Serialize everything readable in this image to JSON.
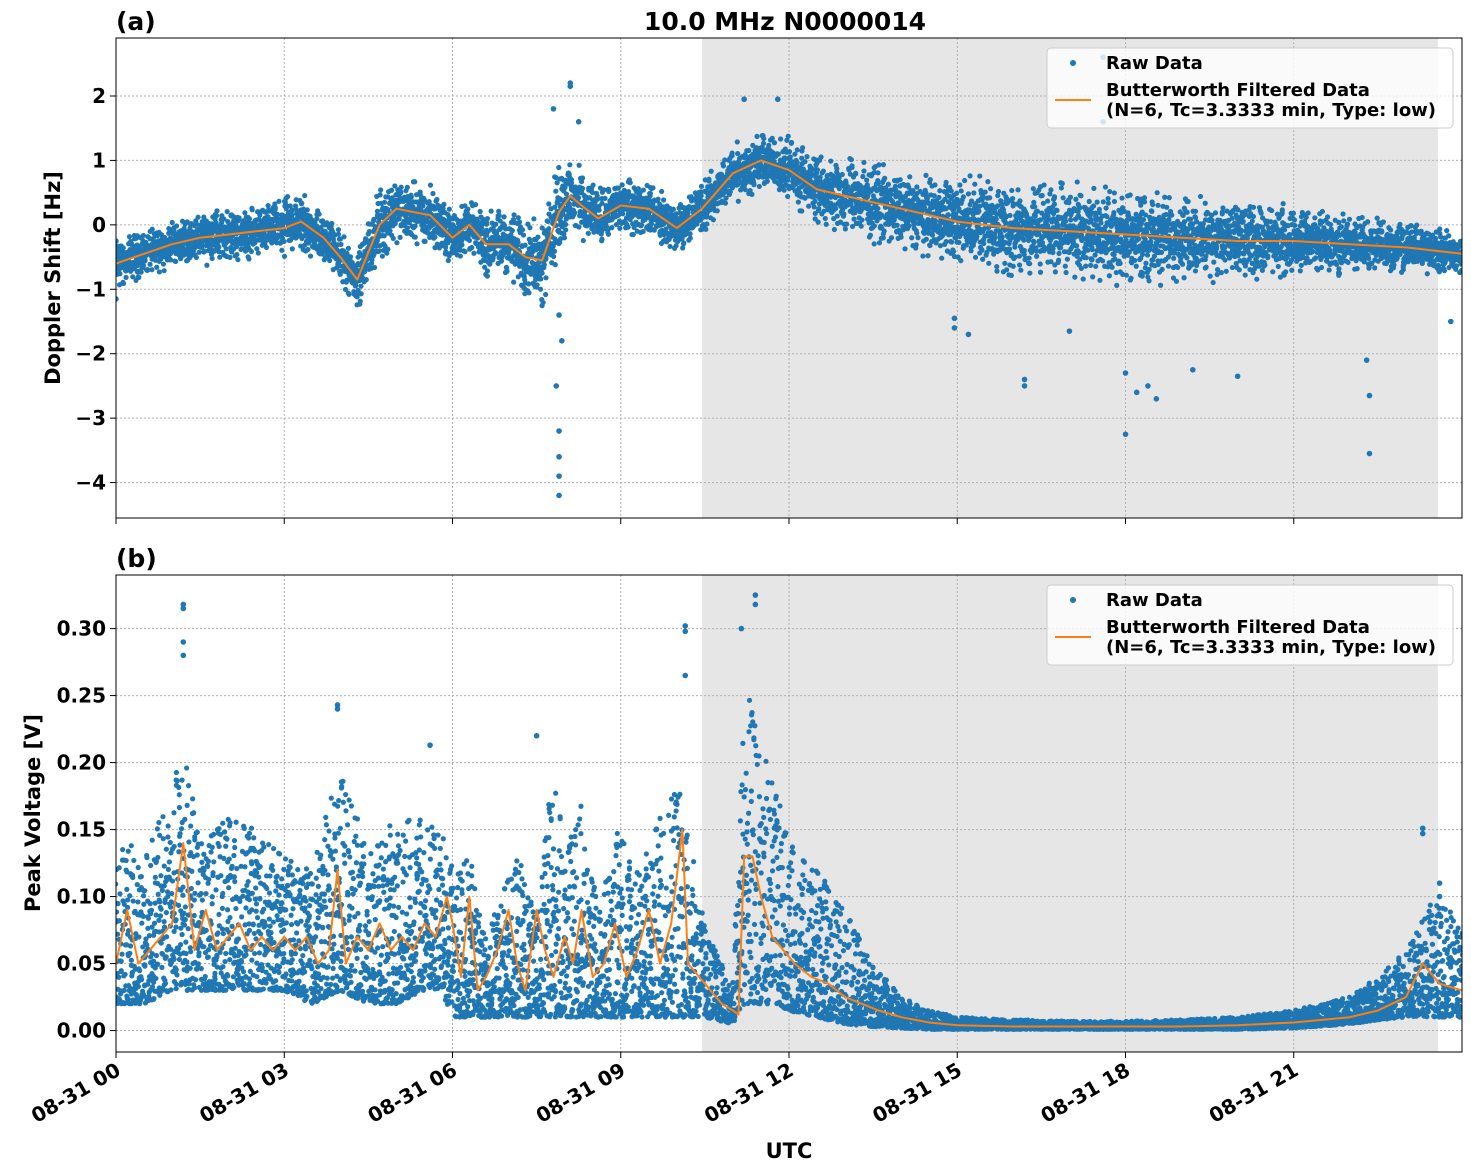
{
  "title": "10.0 MHz N0000014",
  "colors": {
    "raw": "#1f77b4",
    "filtered": "#ff7f0e",
    "night_shade": "#e6e6e6",
    "grid": "#b0b0b0"
  },
  "x_axis": {
    "label": "UTC",
    "range_hours": [
      0,
      24
    ],
    "ticks": [
      {
        "hour": 0,
        "label": "08-31 00"
      },
      {
        "hour": 3,
        "label": "08-31 03"
      },
      {
        "hour": 6,
        "label": "08-31 06"
      },
      {
        "hour": 9,
        "label": "08-31 09"
      },
      {
        "hour": 12,
        "label": "08-31 12"
      },
      {
        "hour": 15,
        "label": "08-31 15"
      },
      {
        "hour": 18,
        "label": "08-31 18"
      },
      {
        "hour": 21,
        "label": "08-31 21"
      }
    ]
  },
  "legend": {
    "raw_label": "Raw Data",
    "filtered_label_line1": "Butterworth Filtered Data",
    "filtered_label_line2": "(N=6, Tc=3.3333 min, Type: low)",
    "placement": "top-right"
  },
  "chart_data": [
    {
      "panel": "(a)",
      "type": "scatter",
      "ylabel": "Doppler Shift [Hz]",
      "ylim": [
        -4.55,
        2.9
      ],
      "yticks": [
        {
          "value": 2,
          "label": "2"
        },
        {
          "value": 1,
          "label": "1"
        },
        {
          "value": 0,
          "label": "0"
        },
        {
          "value": -1,
          "label": "−1"
        },
        {
          "value": -2,
          "label": "−2"
        },
        {
          "value": -3,
          "label": "−3"
        },
        {
          "value": -4,
          "label": "−4"
        }
      ],
      "grid": true,
      "shaded_interval_hours": [
        10.45,
        23.57
      ],
      "series": [
        {
          "name": "Raw Data",
          "x_hours": [
            0,
            0.5,
            1,
            1.5,
            2,
            2.5,
            3,
            3.3,
            3.7,
            4,
            4.3,
            4.7,
            5,
            5.3,
            5.6,
            6,
            6.3,
            6.6,
            7,
            7.3,
            7.6,
            7.9,
            8.1,
            8.3,
            8.6,
            9,
            9.5,
            10,
            10.45,
            11,
            11.5,
            12,
            12.5,
            13,
            13.5,
            14,
            15,
            16,
            17,
            18,
            19,
            20,
            21,
            22,
            23,
            24
          ],
          "band_half_width": [
            0.3,
            0.25,
            0.25,
            0.3,
            0.3,
            0.3,
            0.35,
            0.4,
            0.3,
            0.3,
            0.35,
            0.4,
            0.4,
            0.35,
            0.35,
            0.3,
            0.35,
            0.4,
            0.45,
            0.45,
            0.5,
            0.55,
            0.55,
            0.4,
            0.35,
            0.3,
            0.3,
            0.3,
            0.3,
            0.35,
            0.35,
            0.35,
            0.4,
            0.45,
            0.45,
            0.45,
            0.5,
            0.55,
            0.55,
            0.55,
            0.5,
            0.45,
            0.4,
            0.35,
            0.3,
            0.25
          ],
          "center": [
            -0.6,
            -0.45,
            -0.3,
            -0.2,
            -0.15,
            -0.1,
            -0.05,
            0.05,
            -0.2,
            -0.5,
            -0.85,
            0.0,
            0.25,
            0.2,
            0.15,
            -0.2,
            0.0,
            -0.3,
            -0.3,
            -0.5,
            -0.55,
            0.2,
            0.45,
            0.3,
            0.1,
            0.3,
            0.25,
            -0.05,
            0.25,
            0.8,
            1.0,
            0.85,
            0.55,
            0.45,
            0.35,
            0.25,
            0.05,
            -0.05,
            -0.1,
            -0.15,
            -0.2,
            -0.25,
            -0.25,
            -0.3,
            -0.35,
            -0.45
          ],
          "outliers": [
            {
              "x": 7.9,
              "y": -4.2
            },
            {
              "x": 7.9,
              "y": -3.9
            },
            {
              "x": 7.9,
              "y": -3.6
            },
            {
              "x": 7.9,
              "y": -3.2
            },
            {
              "x": 7.85,
              "y": -2.5
            },
            {
              "x": 7.95,
              "y": -1.8
            },
            {
              "x": 7.9,
              "y": -1.4
            },
            {
              "x": 8.1,
              "y": 2.2
            },
            {
              "x": 8.1,
              "y": 2.15
            },
            {
              "x": 7.8,
              "y": 1.8
            },
            {
              "x": 8.25,
              "y": 1.6
            },
            {
              "x": 11.2,
              "y": 1.95
            },
            {
              "x": 11.8,
              "y": 1.95
            },
            {
              "x": 17.6,
              "y": 2.6
            },
            {
              "x": 17.6,
              "y": 1.6
            },
            {
              "x": 14.95,
              "y": -1.45
            },
            {
              "x": 14.95,
              "y": -1.6
            },
            {
              "x": 15.2,
              "y": -1.7
            },
            {
              "x": 16.2,
              "y": -2.4
            },
            {
              "x": 16.2,
              "y": -2.5
            },
            {
              "x": 17.0,
              "y": -1.65
            },
            {
              "x": 18.0,
              "y": -2.3
            },
            {
              "x": 18.2,
              "y": -2.6
            },
            {
              "x": 18.4,
              "y": -2.5
            },
            {
              "x": 18.55,
              "y": -2.7
            },
            {
              "x": 18.0,
              "y": -3.25
            },
            {
              "x": 19.2,
              "y": -2.25
            },
            {
              "x": 20.0,
              "y": -2.35
            },
            {
              "x": 22.35,
              "y": -2.65
            },
            {
              "x": 22.35,
              "y": -3.55
            },
            {
              "x": 22.3,
              "y": -2.1
            },
            {
              "x": 23.8,
              "y": -1.5
            },
            {
              "x": 0.0,
              "y": -1.15
            }
          ]
        },
        {
          "name": "Butterworth Filtered Data",
          "x_hours": [
            0,
            0.5,
            1,
            1.5,
            2,
            2.5,
            3,
            3.3,
            3.7,
            4,
            4.3,
            4.7,
            5,
            5.3,
            5.6,
            6,
            6.3,
            6.6,
            7,
            7.3,
            7.6,
            7.9,
            8.1,
            8.3,
            8.6,
            9,
            9.5,
            10,
            10.45,
            11,
            11.5,
            12,
            12.5,
            13,
            13.5,
            14,
            15,
            16,
            17,
            18,
            19,
            20,
            21,
            22,
            23,
            24
          ],
          "y": [
            -0.6,
            -0.45,
            -0.3,
            -0.2,
            -0.15,
            -0.1,
            -0.05,
            0.05,
            -0.2,
            -0.5,
            -0.85,
            0.0,
            0.25,
            0.2,
            0.15,
            -0.2,
            0.0,
            -0.3,
            -0.3,
            -0.5,
            -0.55,
            0.2,
            0.45,
            0.3,
            0.1,
            0.3,
            0.25,
            -0.05,
            0.25,
            0.8,
            1.0,
            0.85,
            0.55,
            0.45,
            0.35,
            0.25,
            0.05,
            -0.05,
            -0.1,
            -0.15,
            -0.2,
            -0.25,
            -0.25,
            -0.3,
            -0.35,
            -0.45
          ]
        }
      ]
    },
    {
      "panel": "(b)",
      "type": "scatter",
      "ylabel": "Peak Voltage [V]",
      "ylim": [
        -0.016,
        0.34
      ],
      "yticks": [
        {
          "value": 0.3,
          "label": "0.30"
        },
        {
          "value": 0.25,
          "label": "0.25"
        },
        {
          "value": 0.2,
          "label": "0.20"
        },
        {
          "value": 0.15,
          "label": "0.15"
        },
        {
          "value": 0.1,
          "label": "0.10"
        },
        {
          "value": 0.05,
          "label": "0.05"
        },
        {
          "value": 0.0,
          "label": "0.00"
        }
      ],
      "grid": true,
      "shaded_interval_hours": [
        10.45,
        23.57
      ],
      "series": [
        {
          "name": "Raw Data",
          "x_hours": [
            0,
            0.5,
            1,
            1.2,
            1.5,
            2,
            2.5,
            3,
            3.5,
            4,
            4.5,
            5,
            5.5,
            5.8,
            6,
            6.3,
            6.6,
            7,
            7.2,
            7.5,
            7.8,
            8,
            8.3,
            8.6,
            9,
            9.3,
            9.6,
            10,
            10.2,
            10.5,
            11,
            11.2,
            11.4,
            11.7,
            12,
            12.5,
            13,
            13.5,
            14,
            14.5,
            15,
            16,
            17,
            18,
            19,
            20,
            21,
            22,
            22.5,
            23,
            23.5,
            24
          ],
          "upper": [
            0.15,
            0.13,
            0.18,
            0.22,
            0.14,
            0.16,
            0.15,
            0.13,
            0.12,
            0.2,
            0.13,
            0.16,
            0.16,
            0.15,
            0.12,
            0.13,
            0.07,
            0.12,
            0.13,
            0.08,
            0.2,
            0.13,
            0.17,
            0.09,
            0.16,
            0.12,
            0.15,
            0.2,
            0.15,
            0.08,
            0.03,
            0.26,
            0.23,
            0.19,
            0.14,
            0.12,
            0.09,
            0.05,
            0.025,
            0.015,
            0.01,
            0.008,
            0.007,
            0.007,
            0.008,
            0.01,
            0.015,
            0.025,
            0.04,
            0.06,
            0.1,
            0.08
          ],
          "lower": [
            0.02,
            0.02,
            0.03,
            0.03,
            0.03,
            0.03,
            0.03,
            0.03,
            0.02,
            0.03,
            0.02,
            0.02,
            0.03,
            0.03,
            0.01,
            0.01,
            0.01,
            0.01,
            0.01,
            0.01,
            0.01,
            0.01,
            0.01,
            0.01,
            0.01,
            0.01,
            0.01,
            0.01,
            0.01,
            0.01,
            0.005,
            0.02,
            0.02,
            0.02,
            0.015,
            0.01,
            0.005,
            0.003,
            0.002,
            0.001,
            0.001,
            0.001,
            0.001,
            0.001,
            0.001,
            0.001,
            0.002,
            0.005,
            0.008,
            0.01,
            0.01,
            0.01
          ],
          "outliers": [
            {
              "x": 1.2,
              "y": 0.318
            },
            {
              "x": 1.2,
              "y": 0.315
            },
            {
              "x": 1.2,
              "y": 0.29
            },
            {
              "x": 1.2,
              "y": 0.28
            },
            {
              "x": 3.95,
              "y": 0.243
            },
            {
              "x": 3.95,
              "y": 0.24
            },
            {
              "x": 10.15,
              "y": 0.302
            },
            {
              "x": 10.15,
              "y": 0.298
            },
            {
              "x": 10.15,
              "y": 0.265
            },
            {
              "x": 11.15,
              "y": 0.3
            },
            {
              "x": 11.4,
              "y": 0.325
            },
            {
              "x": 11.4,
              "y": 0.318
            },
            {
              "x": 5.6,
              "y": 0.213
            },
            {
              "x": 7.5,
              "y": 0.22
            },
            {
              "x": 23.3,
              "y": 0.151
            },
            {
              "x": 23.3,
              "y": 0.147
            },
            {
              "x": 23.6,
              "y": 0.11
            },
            {
              "x": 23.6,
              "y": 0.1
            }
          ]
        },
        {
          "name": "Butterworth Filtered Data",
          "x_hours": [
            0,
            0.2,
            0.4,
            0.6,
            0.8,
            1,
            1.2,
            1.4,
            1.6,
            1.8,
            2,
            2.2,
            2.4,
            2.6,
            2.8,
            3,
            3.2,
            3.4,
            3.6,
            3.8,
            3.95,
            4.1,
            4.3,
            4.5,
            4.7,
            4.9,
            5.1,
            5.3,
            5.5,
            5.7,
            5.9,
            6,
            6.15,
            6.3,
            6.45,
            6.6,
            6.8,
            7,
            7.15,
            7.3,
            7.5,
            7.65,
            7.8,
            8,
            8.15,
            8.3,
            8.5,
            8.7,
            8.9,
            9.1,
            9.3,
            9.5,
            9.7,
            9.9,
            10.1,
            10.2,
            10.4,
            10.6,
            10.8,
            11,
            11.1,
            11.2,
            11.35,
            11.5,
            11.7,
            11.9,
            12.1,
            12.4,
            12.7,
            13,
            13.3,
            13.6,
            14,
            14.5,
            15,
            16,
            17,
            18,
            19,
            20,
            21,
            22,
            22.5,
            23,
            23.3,
            23.6,
            24
          ],
          "y": [
            0.05,
            0.09,
            0.05,
            0.06,
            0.07,
            0.08,
            0.14,
            0.06,
            0.09,
            0.06,
            0.07,
            0.08,
            0.06,
            0.07,
            0.06,
            0.07,
            0.06,
            0.07,
            0.05,
            0.06,
            0.12,
            0.05,
            0.07,
            0.06,
            0.08,
            0.06,
            0.07,
            0.06,
            0.08,
            0.07,
            0.1,
            0.08,
            0.04,
            0.1,
            0.03,
            0.04,
            0.06,
            0.09,
            0.05,
            0.03,
            0.09,
            0.06,
            0.04,
            0.07,
            0.05,
            0.09,
            0.04,
            0.05,
            0.08,
            0.04,
            0.06,
            0.09,
            0.05,
            0.08,
            0.15,
            0.05,
            0.04,
            0.03,
            0.02,
            0.015,
            0.012,
            0.13,
            0.13,
            0.1,
            0.07,
            0.06,
            0.05,
            0.04,
            0.035,
            0.025,
            0.02,
            0.015,
            0.01,
            0.006,
            0.004,
            0.003,
            0.003,
            0.003,
            0.003,
            0.004,
            0.006,
            0.01,
            0.015,
            0.025,
            0.05,
            0.035,
            0.03
          ]
        }
      ]
    }
  ]
}
